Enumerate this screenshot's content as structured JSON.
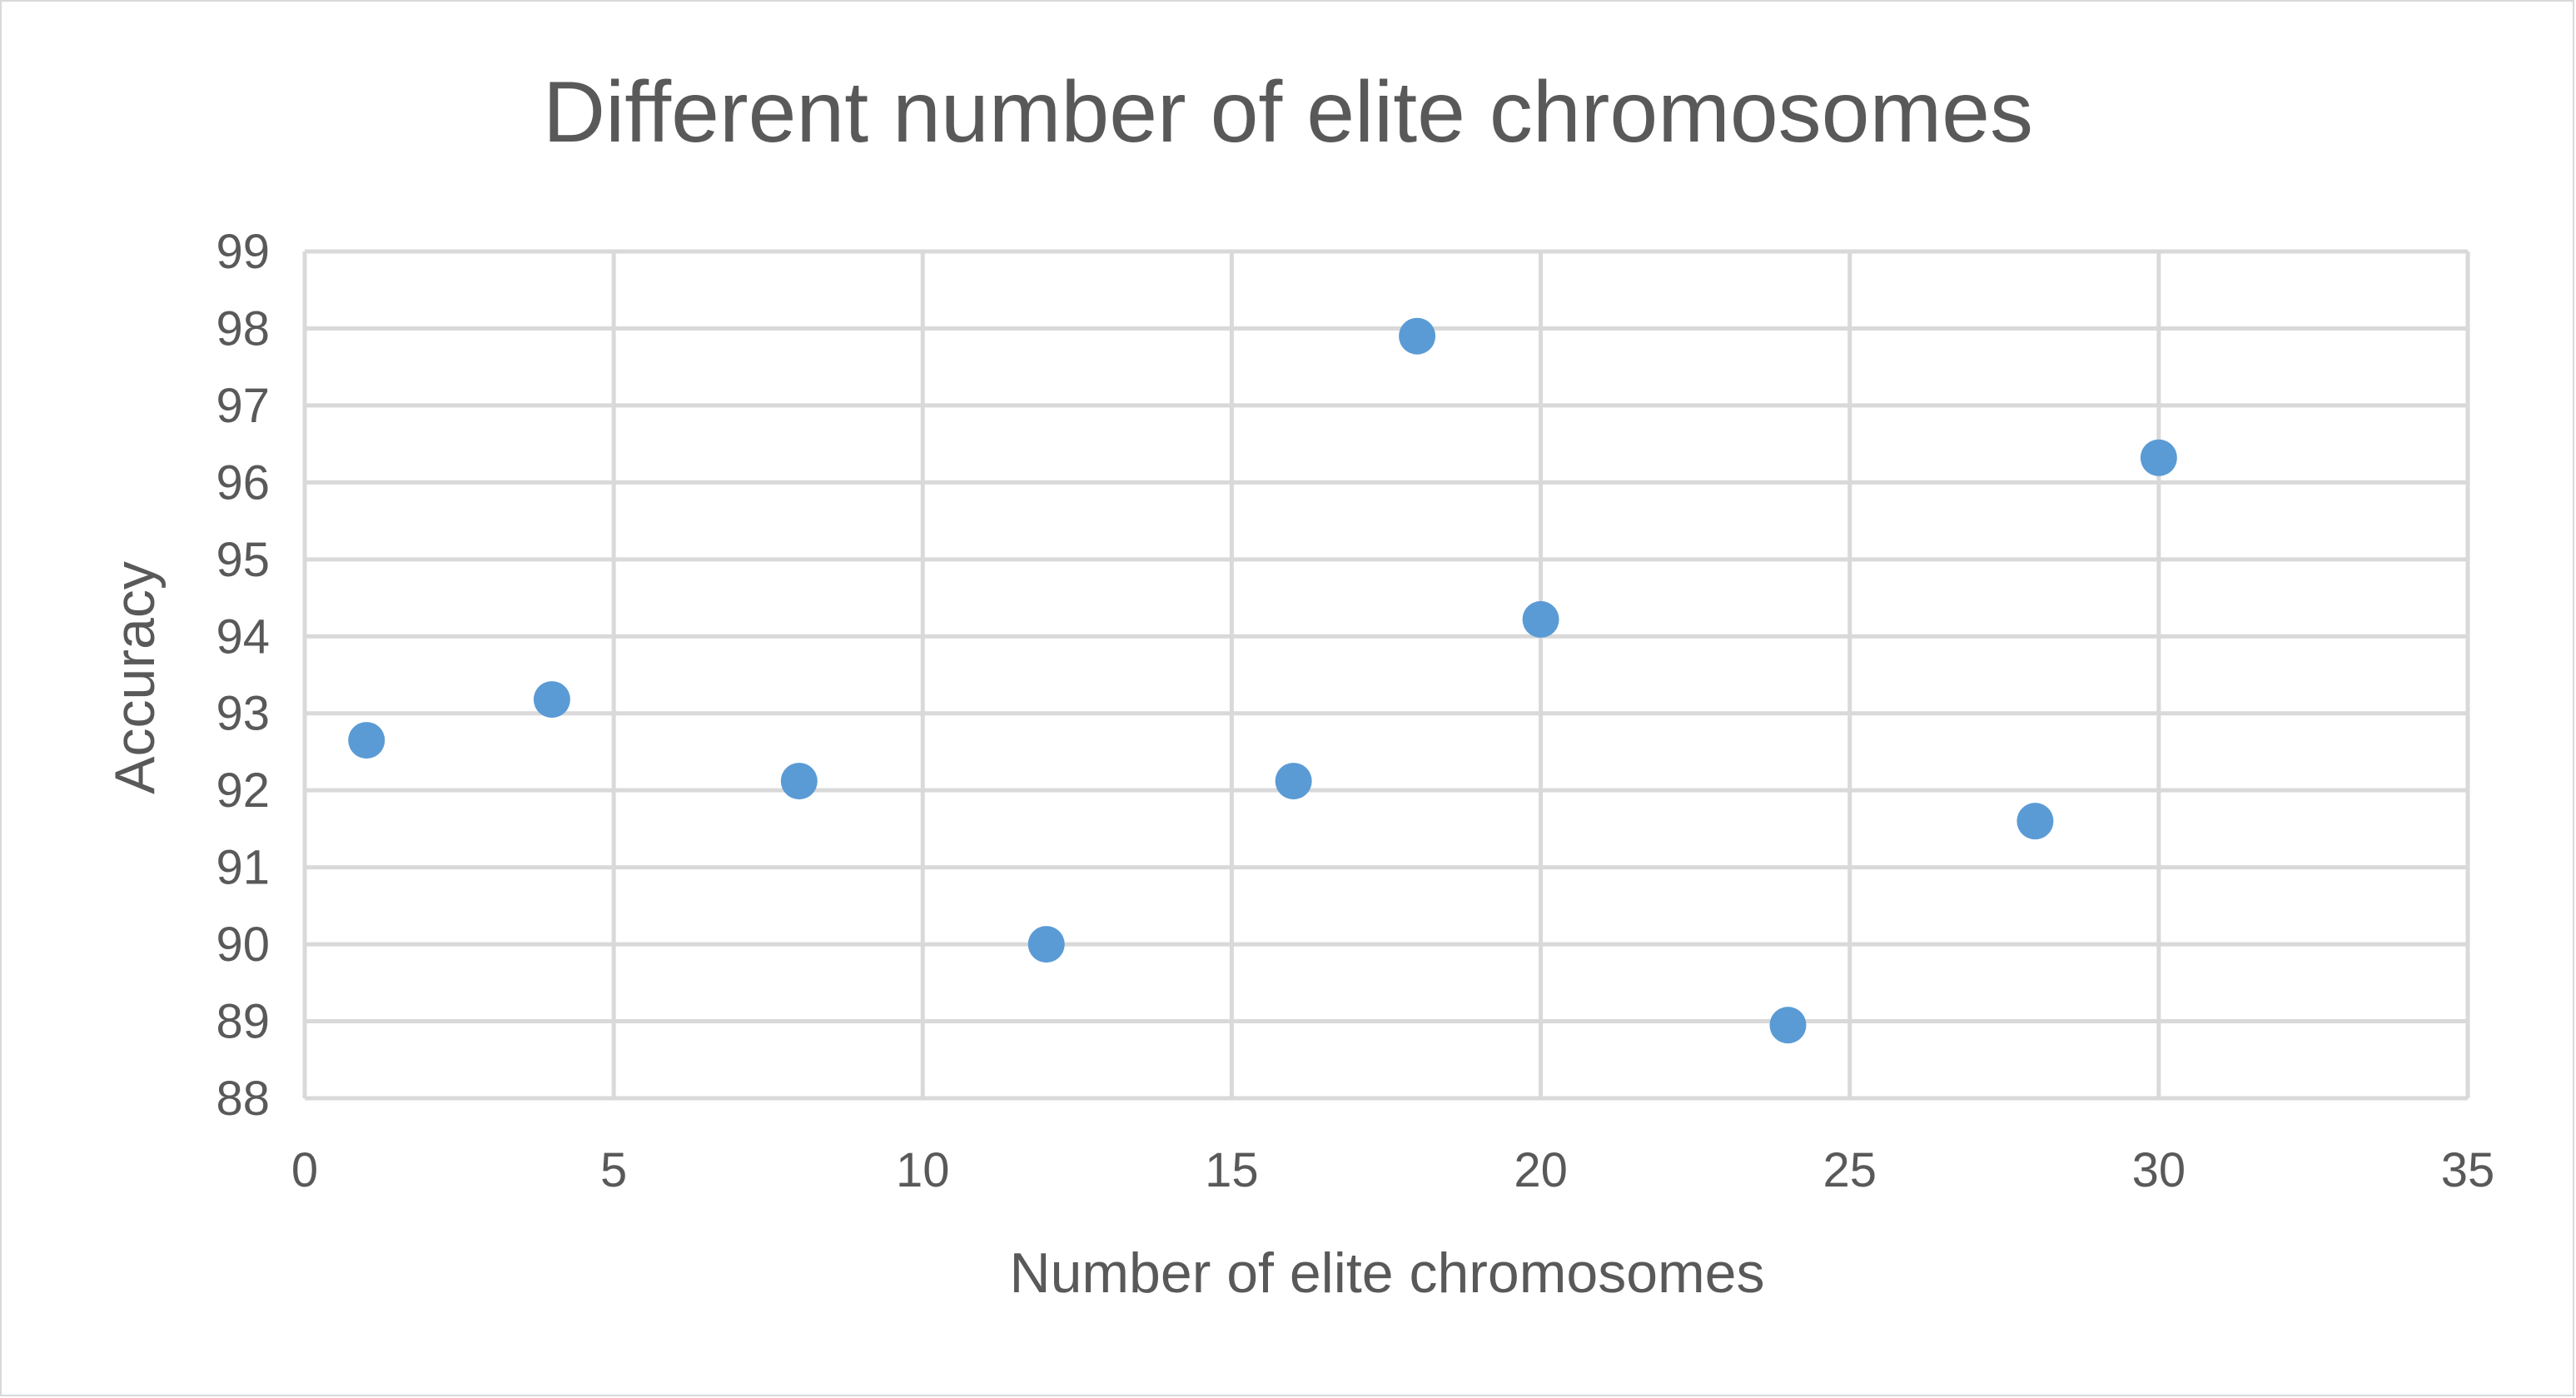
{
  "chart_data": {
    "type": "scatter",
    "title": "Different number of elite chromosomes",
    "xlabel": "Number of elite chromosomes",
    "ylabel": "Accuracy",
    "xlim": [
      0,
      35
    ],
    "ylim": [
      88,
      99
    ],
    "xticks": [
      0,
      5,
      10,
      15,
      20,
      25,
      30,
      35
    ],
    "yticks": [
      88,
      89,
      90,
      91,
      92,
      93,
      94,
      95,
      96,
      97,
      98,
      99
    ],
    "grid": true,
    "legend": "none",
    "marker_color": "#5b9bd5",
    "series": [
      {
        "x": [
          1,
          4,
          8,
          12,
          16,
          18,
          20,
          24,
          28,
          30
        ],
        "values": [
          92.65,
          93.18,
          92.12,
          90.0,
          92.12,
          97.9,
          94.22,
          88.95,
          91.6,
          96.32
        ]
      }
    ]
  }
}
